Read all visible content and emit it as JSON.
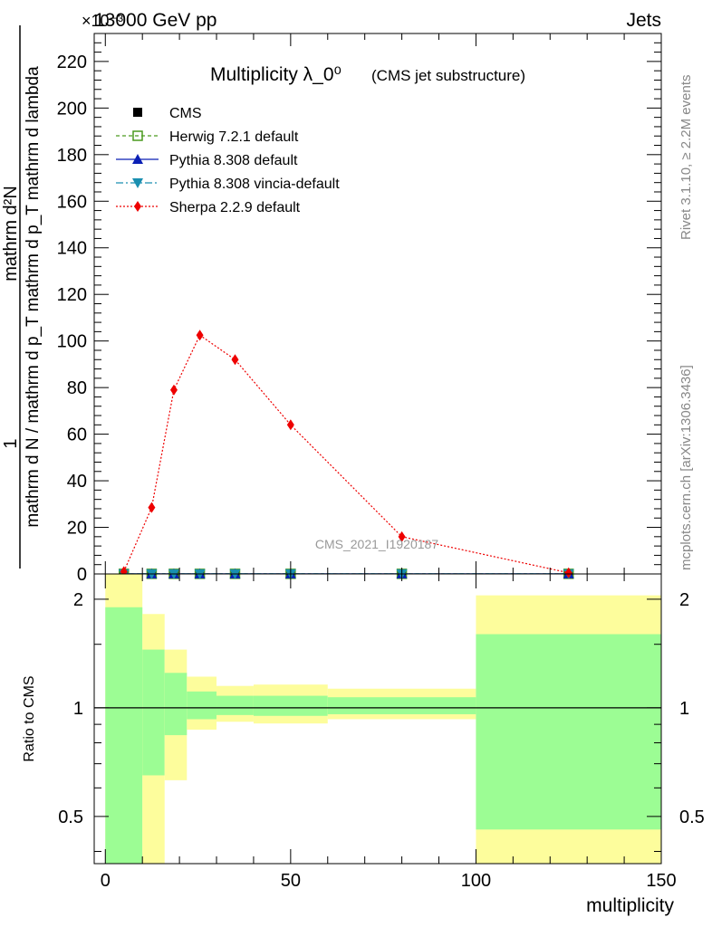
{
  "header": {
    "left": "13000 GeV pp",
    "right": "Jets",
    "exponent": "×10⁻³"
  },
  "side_labels": {
    "rivet": "Rivet 3.1.10, ≥ 2.2M events",
    "mcplots": "mcplots.cern.ch [arXiv:1306.3436]"
  },
  "watermark": "CMS_2021_I1920187",
  "chart_data": [
    {
      "type": "line",
      "title": "Multiplicity λ_0⁰",
      "subtitle": "(CMS jet substructure)",
      "ylabel_numerator": "1",
      "ylabel_denominator": "mathrm d N / mathrm d p_T mathrm d p_T mathrm d lambda",
      "ylabel_top": "mathrm d²N",
      "xlim": [
        -3,
        150
      ],
      "ylim": [
        0,
        232
      ],
      "yticks": [
        0,
        20,
        40,
        60,
        80,
        100,
        120,
        140,
        160,
        180,
        200,
        220
      ],
      "legend_position": "top-left",
      "series": [
        {
          "name": "CMS",
          "color": "#000000",
          "marker": "square",
          "x": [
            5,
            12.5,
            18.5,
            25.5,
            35,
            50,
            80,
            125
          ],
          "y": [
            0.05,
            0.05,
            0.05,
            0.05,
            0.05,
            0.05,
            0.05,
            0.05
          ]
        },
        {
          "name": "Herwig 7.2.1 default",
          "color": "#4a9a1e",
          "marker": "open-square",
          "dash": "4,3",
          "x": [
            5,
            12.5,
            18.5,
            25.5,
            35,
            50,
            80,
            125
          ],
          "y": [
            0.05,
            0.05,
            0.05,
            0.05,
            0.05,
            0.05,
            0.05,
            0.05
          ]
        },
        {
          "name": "Pythia 8.308 default",
          "color": "#0a1fb5",
          "marker": "triangle-up",
          "dash": "",
          "x": [
            5,
            12.5,
            18.5,
            25.5,
            35,
            50,
            80,
            125
          ],
          "y": [
            0.05,
            0.05,
            0.05,
            0.05,
            0.05,
            0.05,
            0.05,
            0.05
          ]
        },
        {
          "name": "Pythia 8.308 vincia-default",
          "color": "#1a8fb0",
          "marker": "triangle-down",
          "dash": "8,3,2,3",
          "x": [
            5,
            12.5,
            18.5,
            25.5,
            35,
            50,
            80,
            125
          ],
          "y": [
            0.05,
            0.05,
            0.05,
            0.05,
            0.05,
            0.05,
            0.05,
            0.05
          ]
        },
        {
          "name": "Sherpa 2.2.9 default",
          "color": "#ee0000",
          "marker": "diamond",
          "dash": "2,2",
          "x": [
            5,
            12.5,
            18.5,
            25.5,
            35,
            50,
            80,
            125
          ],
          "y": [
            1.0,
            28.5,
            79,
            102.5,
            92,
            64,
            16,
            0.5
          ]
        }
      ]
    },
    {
      "type": "area",
      "ylabel": "Ratio to CMS",
      "xlabel": "multiplicity",
      "xlim": [
        -3,
        150
      ],
      "ylim": [
        0.37,
        2.35
      ],
      "ylog": true,
      "xticks": [
        0,
        50,
        100,
        150
      ],
      "yticks": [
        0.5,
        1,
        2
      ],
      "reference_line": 1,
      "bands": [
        {
          "x0": 0,
          "x1": 10,
          "inner": [
            0.37,
            1.9
          ],
          "outer": [
            0.37,
            2.35
          ]
        },
        {
          "x0": 10,
          "x1": 16,
          "inner": [
            0.65,
            1.45
          ],
          "outer": [
            0.37,
            1.82
          ]
        },
        {
          "x0": 16,
          "x1": 22,
          "inner": [
            0.84,
            1.25
          ],
          "outer": [
            0.63,
            1.45
          ]
        },
        {
          "x0": 22,
          "x1": 30,
          "inner": [
            0.93,
            1.11
          ],
          "outer": [
            0.87,
            1.22
          ]
        },
        {
          "x0": 30,
          "x1": 40,
          "inner": [
            0.955,
            1.08
          ],
          "outer": [
            0.915,
            1.15
          ]
        },
        {
          "x0": 40,
          "x1": 60,
          "inner": [
            0.95,
            1.08
          ],
          "outer": [
            0.905,
            1.16
          ]
        },
        {
          "x0": 60,
          "x1": 100,
          "inner": [
            0.96,
            1.07
          ],
          "outer": [
            0.93,
            1.13
          ]
        },
        {
          "x0": 100,
          "x1": 150,
          "inner": [
            0.46,
            1.6
          ],
          "outer": [
            0.37,
            2.05
          ]
        }
      ],
      "band_colors": {
        "inner": "#9cfd94",
        "outer": "#fdfd9c"
      }
    }
  ]
}
